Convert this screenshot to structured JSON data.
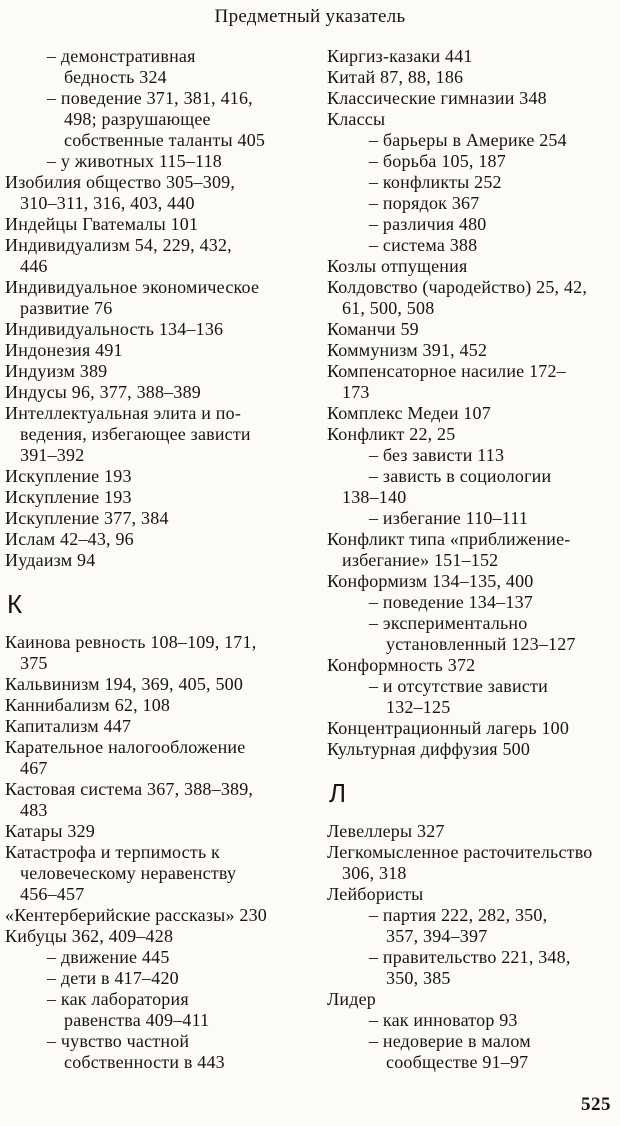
{
  "header": {
    "title": "Предметный указатель"
  },
  "footer": {
    "page_number": "525"
  },
  "index": {
    "left_column": [
      {
        "t": "dash",
        "text": "– демонстративная"
      },
      {
        "t": "dashcont",
        "text": "бедность 324"
      },
      {
        "t": "dash",
        "text": "– поведение 371, 381, 416,"
      },
      {
        "t": "dashcont",
        "text": "498; разрушающее"
      },
      {
        "t": "dashcont",
        "text": "собственные таланты 405"
      },
      {
        "t": "dash",
        "text": "– у животных 115–118"
      },
      {
        "t": "entry",
        "text": "Изобилия общество 305–309,"
      },
      {
        "t": "cont",
        "text": "310–311, 316, 403, 440"
      },
      {
        "t": "entry",
        "text": "Индейцы Гватемалы 101"
      },
      {
        "t": "entry",
        "text": "Индивидуализм 54, 229, 432,"
      },
      {
        "t": "cont",
        "text": "446"
      },
      {
        "t": "entry",
        "text": "Индивидуальное экономическое"
      },
      {
        "t": "cont",
        "text": "развитие 76"
      },
      {
        "t": "entry",
        "text": "Индивидуальность 134–136"
      },
      {
        "t": "entry",
        "text": "Индонезия 491"
      },
      {
        "t": "entry",
        "text": "Индуизм 389"
      },
      {
        "t": "entry",
        "text": "Индусы 96, 377, 388–389"
      },
      {
        "t": "entry",
        "text": "Интеллектуальная элита и по-"
      },
      {
        "t": "cont",
        "text": "ведения, избегающее зависти"
      },
      {
        "t": "cont",
        "text": "391–392"
      },
      {
        "t": "entry",
        "text": "Искупление 193"
      },
      {
        "t": "entry",
        "text": "Искупление 193"
      },
      {
        "t": "entry",
        "text": "Искупление 377, 384"
      },
      {
        "t": "entry",
        "text": "Ислам 42–43, 96"
      },
      {
        "t": "entry",
        "text": "Иудаизм 94"
      },
      {
        "t": "heading",
        "text": "К"
      },
      {
        "t": "entry",
        "text": "Каинова ревность 108–109, 171,"
      },
      {
        "t": "cont",
        "text": "375"
      },
      {
        "t": "entry",
        "text": "Кальвинизм 194, 369, 405, 500"
      },
      {
        "t": "entry",
        "text": "Каннибализм 62, 108"
      },
      {
        "t": "entry",
        "text": "Капитализм 447"
      },
      {
        "t": "entry",
        "text": "Карательное налогообложение"
      },
      {
        "t": "cont",
        "text": "467"
      },
      {
        "t": "entry",
        "text": "Кастовая система 367, 388–389,"
      },
      {
        "t": "cont",
        "text": "483"
      },
      {
        "t": "entry",
        "text": "Катары 329"
      },
      {
        "t": "entry",
        "text": "Катастрофа и терпимость к"
      },
      {
        "t": "cont",
        "text": "человеческому неравенству"
      },
      {
        "t": "cont",
        "text": "456–457"
      },
      {
        "t": "entry",
        "text": "«Кентерберийские рассказы» 230"
      },
      {
        "t": "entry",
        "text": "Кибуцы 362, 409–428"
      },
      {
        "t": "dash",
        "text": "– движение 445"
      },
      {
        "t": "dash",
        "text": "– дети в 417–420"
      },
      {
        "t": "dash",
        "text": "– как лаборатория"
      },
      {
        "t": "dashcont",
        "text": "равенства 409–411"
      },
      {
        "t": "dash",
        "text": "– чувство частной"
      },
      {
        "t": "dashcont",
        "text": "собственности в 443"
      }
    ],
    "right_column": [
      {
        "t": "entry",
        "text": "Киргиз-казаки 441"
      },
      {
        "t": "entry",
        "text": "Китай 87, 88, 186"
      },
      {
        "t": "entry",
        "text": "Классические гимназии 348"
      },
      {
        "t": "entry",
        "text": "Классы"
      },
      {
        "t": "dash",
        "text": "– барьеры в Америке 254"
      },
      {
        "t": "dash",
        "text": "– борьба 105, 187"
      },
      {
        "t": "dash",
        "text": "– конфликты 252"
      },
      {
        "t": "dash",
        "text": "– порядок 367"
      },
      {
        "t": "dash",
        "text": "– различия 480"
      },
      {
        "t": "dash",
        "text": "– система 388"
      },
      {
        "t": "entry",
        "text": "Козлы отпущения"
      },
      {
        "t": "entry",
        "text": "Колдовство (чародейство) 25, 42,"
      },
      {
        "t": "cont",
        "text": "61, 500, 508"
      },
      {
        "t": "entry",
        "text": "Команчи 59"
      },
      {
        "t": "entry",
        "text": "Коммунизм 391, 452"
      },
      {
        "t": "entry",
        "text": "Компенсаторное насилие 172–"
      },
      {
        "t": "cont",
        "text": "173"
      },
      {
        "t": "entry",
        "text": "Комплекс Медеи 107"
      },
      {
        "t": "entry",
        "text": "Конфликт 22, 25"
      },
      {
        "t": "dash",
        "text": "– без зависти 113"
      },
      {
        "t": "dash",
        "text": "– зависть в социологии"
      },
      {
        "t": "cont",
        "text": "138–140"
      },
      {
        "t": "dash",
        "text": "– избегание 110–111"
      },
      {
        "t": "entry",
        "text": "Конфликт типа «приближение-"
      },
      {
        "t": "cont",
        "text": "избегание» 151–152"
      },
      {
        "t": "entry",
        "text": "Конформизм 134–135, 400"
      },
      {
        "t": "dash",
        "text": "– поведение 134–137"
      },
      {
        "t": "dash",
        "text": "– экспериментально"
      },
      {
        "t": "dashcont",
        "text": "установленный 123–127"
      },
      {
        "t": "entry",
        "text": "Конформность 372"
      },
      {
        "t": "dash",
        "text": "– и отсутствие зависти"
      },
      {
        "t": "dashcont",
        "text": "132–125"
      },
      {
        "t": "entry",
        "text": "Концентрационный лагерь 100"
      },
      {
        "t": "entry",
        "text": "Культурная диффузия 500"
      },
      {
        "t": "heading",
        "text": "Л"
      },
      {
        "t": "entry",
        "text": "Левеллеры 327"
      },
      {
        "t": "entry",
        "text": "Легкомысленное расточительство"
      },
      {
        "t": "cont",
        "text": "306, 318"
      },
      {
        "t": "entry",
        "text": "Лейбористы"
      },
      {
        "t": "dash",
        "text": "– партия 222, 282, 350,"
      },
      {
        "t": "dashcont",
        "text": "357, 394–397"
      },
      {
        "t": "dash",
        "text": "– правительство 221, 348,"
      },
      {
        "t": "dashcont",
        "text": "350, 385"
      },
      {
        "t": "entry",
        "text": "Лидер"
      },
      {
        "t": "dash",
        "text": "– как инноватор 93"
      },
      {
        "t": "dash",
        "text": "– недоверие в малом"
      },
      {
        "t": "dashcont",
        "text": "сообществе 91–97"
      }
    ]
  }
}
